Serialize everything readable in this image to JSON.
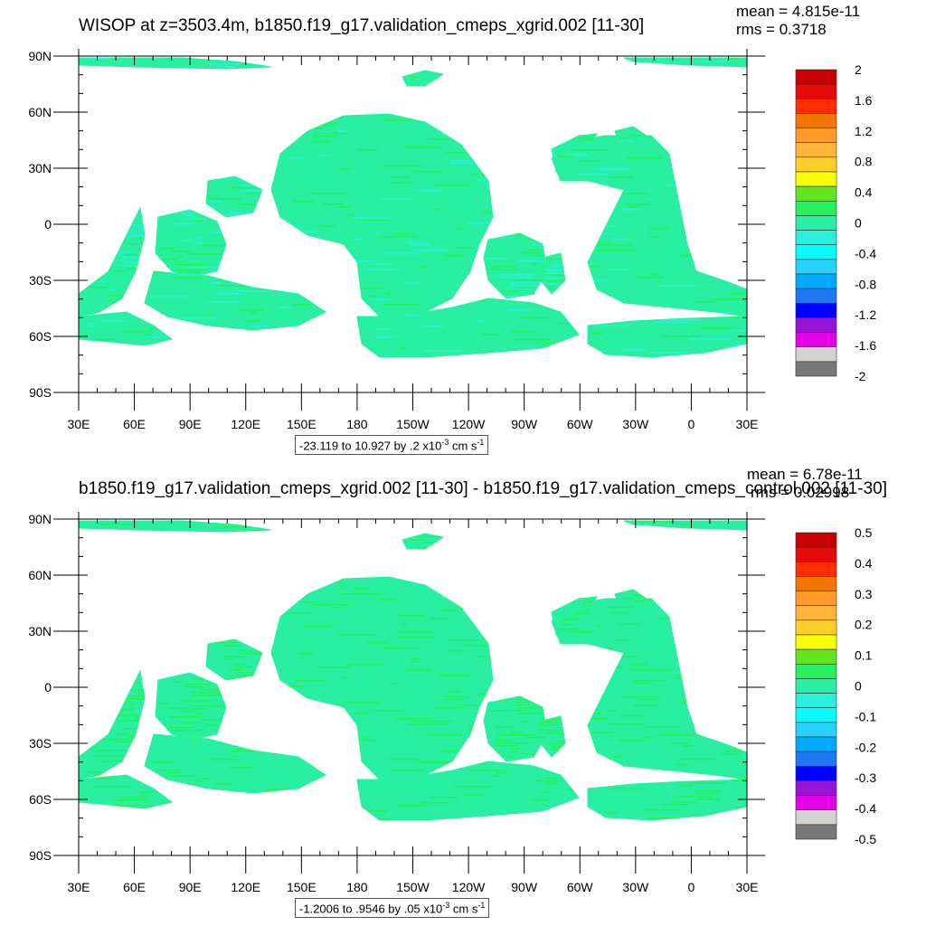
{
  "chart_data": [
    {
      "type": "heatmap",
      "title": "WISOP at z=3503.4m, b1850.f19_g17.validation_cmeps_xgrid.002 [11-30]",
      "stats": {
        "mean": "mean = 4.815e-11",
        "rms": "rms = 0.3718"
      },
      "x_ticks": [
        "30E",
        "60E",
        "90E",
        "120E",
        "150E",
        "180",
        "150W",
        "120W",
        "90W",
        "60W",
        "30W",
        "0",
        "30E"
      ],
      "y_ticks": [
        "90N",
        "60N",
        "30N",
        "0",
        "30S",
        "60S",
        "90S"
      ],
      "colorbar": {
        "labels": [
          "2",
          "1.6",
          "1.2",
          "0.8",
          "0.4",
          "0",
          "-0.4",
          "-0.8",
          "-1.2",
          "-1.6",
          "-2"
        ],
        "colors": [
          "#c80000",
          "#e60a0a",
          "#ff2d00",
          "#f07800",
          "#ff9b28",
          "#ffb43c",
          "#ffd028",
          "#ffff00",
          "#64e61e",
          "#28f05a",
          "#28f0a0",
          "#28f0dc",
          "#00ffff",
          "#28d2ff",
          "#00aaff",
          "#1e78f0",
          "#0000ff",
          "#9614d2",
          "#e600e6",
          "#d2d2d2",
          "#787878"
        ]
      },
      "range_note": {
        "text": "-23.119 to 10.927 by .2 x10",
        "exp": "-3",
        "unit": " cm s",
        "unit_exp": "-1"
      },
      "dominant_values": [
        "0",
        "-0.4",
        "0.4"
      ]
    },
    {
      "type": "heatmap",
      "title": "b1850.f19_g17.validation_cmeps_xgrid.002 [11-30] - b1850.f19_g17.validation_cmeps_control.002 [11-30]",
      "stats": {
        "mean": "mean = 6.78e-11",
        "rms": "rms = 0.02998"
      },
      "x_ticks": [
        "30E",
        "60E",
        "90E",
        "120E",
        "150E",
        "180",
        "150W",
        "120W",
        "90W",
        "60W",
        "30W",
        "0",
        "30E"
      ],
      "y_ticks": [
        "90N",
        "60N",
        "30N",
        "0",
        "30S",
        "60S",
        "90S"
      ],
      "colorbar": {
        "labels": [
          "0.5",
          "0.4",
          "0.3",
          "0.2",
          "0.1",
          "0",
          "-0.1",
          "-0.2",
          "-0.3",
          "-0.4",
          "-0.5"
        ],
        "colors": [
          "#c80000",
          "#e60a0a",
          "#ff2d00",
          "#f07800",
          "#ff9b28",
          "#ffb43c",
          "#ffd028",
          "#ffff00",
          "#64e61e",
          "#28f05a",
          "#28f0a0",
          "#28f0dc",
          "#00ffff",
          "#28d2ff",
          "#00aaff",
          "#1e78f0",
          "#0000ff",
          "#9614d2",
          "#e600e6",
          "#d2d2d2",
          "#787878"
        ]
      },
      "range_note": {
        "text": "-1.2006 to .9546 by .05 x10",
        "exp": "-3",
        "unit": " cm s",
        "unit_exp": "-1"
      },
      "dominant_values": [
        "0",
        "-0.1",
        "0.1"
      ]
    }
  ]
}
